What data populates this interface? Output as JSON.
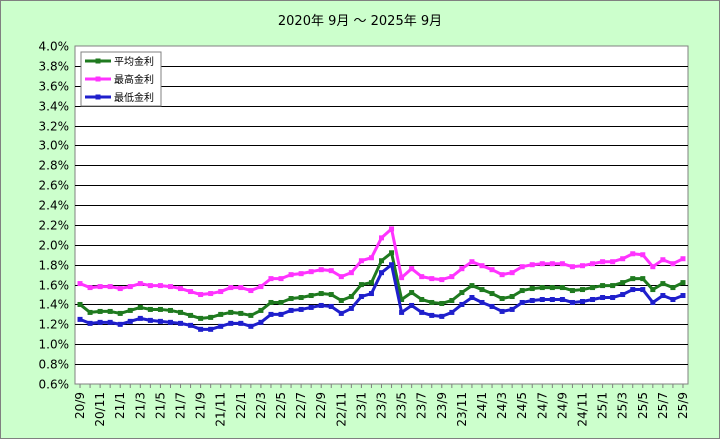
{
  "chart_data": {
    "type": "line",
    "title": "2020年  9月  ～  2025年  9月",
    "xlabel": "",
    "ylabel": "",
    "ylim": [
      0.6,
      4.0
    ],
    "y_tick_step": 0.2,
    "y_tick_format": "percent_1dp",
    "grid": "horizontal",
    "legend_position": "top-left",
    "plot_background": "#ffffff",
    "x_tick_labels": [
      "20/9",
      "20/11",
      "21/1",
      "21/3",
      "21/5",
      "21/7",
      "21/9",
      "21/11",
      "22/1",
      "22/3",
      "22/5",
      "22/7",
      "22/9",
      "22/11",
      "23/1",
      "23/3",
      "23/5",
      "23/7",
      "23/9",
      "23/11",
      "24/1",
      "24/3",
      "24/5",
      "24/7",
      "24/9",
      "24/11",
      "25/1",
      "25/3",
      "25/5",
      "25/7",
      "25/9"
    ],
    "x_tick_every": 2,
    "x": [
      "20/9",
      "20/10",
      "20/11",
      "20/12",
      "21/1",
      "21/2",
      "21/3",
      "21/4",
      "21/5",
      "21/6",
      "21/7",
      "21/8",
      "21/9",
      "21/10",
      "21/11",
      "21/12",
      "22/1",
      "22/2",
      "22/3",
      "22/4",
      "22/5",
      "22/6",
      "22/7",
      "22/8",
      "22/9",
      "22/10",
      "22/11",
      "22/12",
      "23/1",
      "23/2",
      "23/3",
      "23/4",
      "23/5",
      "23/6",
      "23/7",
      "23/8",
      "23/9",
      "23/10",
      "23/11",
      "23/12",
      "24/1",
      "24/2",
      "24/3",
      "24/4",
      "24/5",
      "24/6",
      "24/7",
      "24/8",
      "24/9",
      "24/10",
      "24/11",
      "24/12",
      "25/1",
      "25/2",
      "25/3",
      "25/4",
      "25/5",
      "25/6",
      "25/7",
      "25/8",
      "25/9"
    ],
    "series": [
      {
        "name": "平均金利",
        "color": "#1f7a1f",
        "values": [
          1.4,
          1.32,
          1.33,
          1.33,
          1.31,
          1.34,
          1.37,
          1.35,
          1.35,
          1.34,
          1.32,
          1.29,
          1.26,
          1.27,
          1.3,
          1.32,
          1.31,
          1.29,
          1.34,
          1.42,
          1.42,
          1.46,
          1.47,
          1.49,
          1.51,
          1.5,
          1.44,
          1.48,
          1.6,
          1.62,
          1.84,
          1.92,
          1.45,
          1.52,
          1.45,
          1.42,
          1.41,
          1.44,
          1.52,
          1.59,
          1.55,
          1.51,
          1.46,
          1.48,
          1.54,
          1.56,
          1.57,
          1.57,
          1.57,
          1.54,
          1.55,
          1.57,
          1.59,
          1.59,
          1.62,
          1.66,
          1.66,
          1.55,
          1.61,
          1.57,
          1.62
        ]
      },
      {
        "name": "最高金利",
        "color": "#ff33ff",
        "values": [
          1.61,
          1.57,
          1.58,
          1.58,
          1.56,
          1.58,
          1.61,
          1.59,
          1.59,
          1.58,
          1.56,
          1.53,
          1.5,
          1.51,
          1.53,
          1.57,
          1.57,
          1.54,
          1.58,
          1.66,
          1.66,
          1.7,
          1.71,
          1.73,
          1.75,
          1.74,
          1.68,
          1.72,
          1.84,
          1.87,
          2.07,
          2.16,
          1.67,
          1.76,
          1.68,
          1.66,
          1.65,
          1.68,
          1.76,
          1.83,
          1.79,
          1.75,
          1.7,
          1.72,
          1.78,
          1.8,
          1.81,
          1.81,
          1.81,
          1.78,
          1.79,
          1.81,
          1.83,
          1.83,
          1.86,
          1.91,
          1.9,
          1.78,
          1.85,
          1.81,
          1.86
        ]
      },
      {
        "name": "最低金利",
        "color": "#1f1fcc",
        "values": [
          1.25,
          1.21,
          1.22,
          1.22,
          1.2,
          1.23,
          1.26,
          1.24,
          1.23,
          1.22,
          1.21,
          1.19,
          1.15,
          1.15,
          1.18,
          1.21,
          1.21,
          1.18,
          1.22,
          1.3,
          1.3,
          1.34,
          1.35,
          1.37,
          1.39,
          1.38,
          1.31,
          1.36,
          1.48,
          1.51,
          1.72,
          1.8,
          1.32,
          1.39,
          1.32,
          1.29,
          1.28,
          1.32,
          1.4,
          1.47,
          1.42,
          1.38,
          1.33,
          1.35,
          1.42,
          1.44,
          1.45,
          1.45,
          1.45,
          1.42,
          1.43,
          1.45,
          1.47,
          1.47,
          1.5,
          1.55,
          1.55,
          1.42,
          1.49,
          1.45,
          1.49
        ]
      }
    ]
  }
}
